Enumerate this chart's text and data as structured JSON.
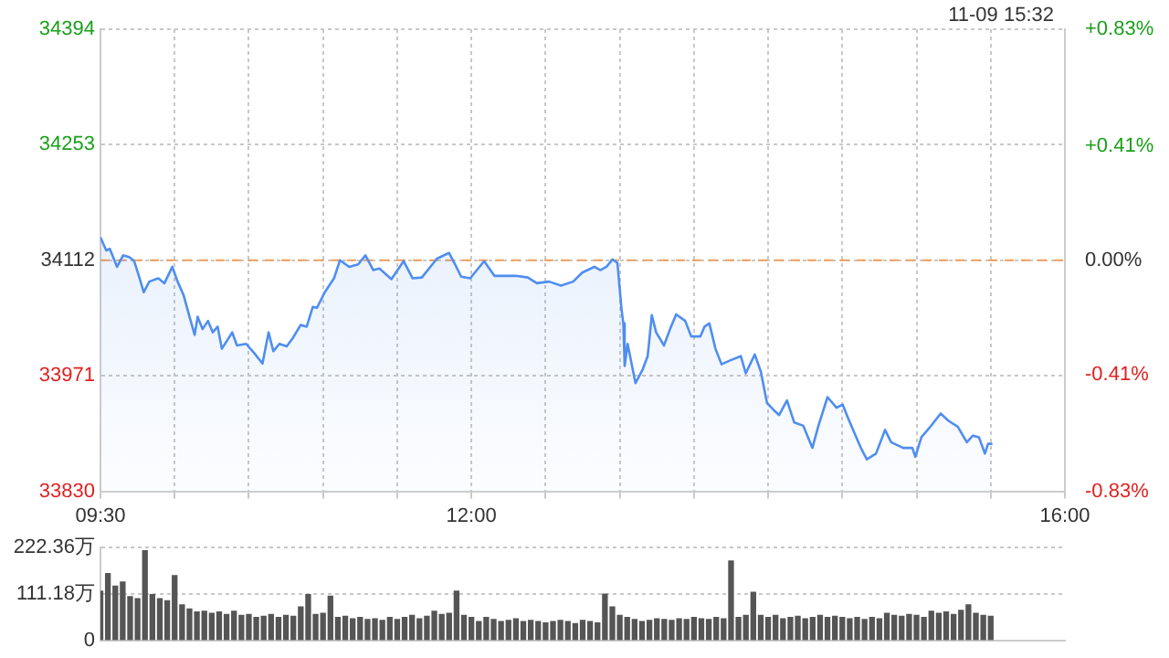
{
  "chart_data": [
    {
      "type": "area",
      "annotations": [
        "11-09 15:32"
      ],
      "series": [
        {
          "color": "#4f8ef0",
          "x": [
            9.5,
            9.539,
            9.563,
            9.612,
            9.653,
            9.694,
            9.727,
            9.759,
            9.792,
            9.829,
            9.89,
            9.931,
            9.984,
            10.02,
            10.061,
            10.102,
            10.135,
            10.155,
            10.188,
            10.225,
            10.257,
            10.29,
            10.318,
            10.388,
            10.42,
            10.482,
            10.535,
            10.592,
            10.633,
            10.665,
            10.706,
            10.755,
            10.796,
            10.849,
            10.89,
            10.931,
            10.959,
            11.012,
            11.074,
            11.114,
            11.176,
            11.237,
            11.286,
            11.339,
            11.38,
            11.461,
            11.543,
            11.604,
            11.666,
            11.768,
            11.849,
            11.89,
            11.931,
            11.992,
            12.086,
            12.155,
            12.298,
            12.38,
            12.441,
            12.523,
            12.604,
            12.686,
            12.747,
            12.829,
            12.869,
            12.91,
            12.951,
            12.984,
            13.012,
            13.024,
            13.033,
            13.053,
            13.106,
            13.155,
            13.188,
            13.216,
            13.245,
            13.298,
            13.339,
            13.38,
            13.441,
            13.482,
            13.543,
            13.571,
            13.604,
            13.645,
            13.686,
            13.747,
            13.816,
            13.849,
            13.91,
            13.951,
            13.992,
            14.033,
            14.074,
            14.127,
            14.176,
            14.237,
            14.298,
            14.339,
            14.4,
            14.461,
            14.502,
            14.535,
            14.584,
            14.625,
            14.665,
            14.727,
            14.788,
            14.829,
            14.91,
            14.972,
            14.992,
            15.033,
            15.094,
            15.163,
            15.216,
            15.278,
            15.339,
            15.38,
            15.421,
            15.461,
            15.482,
            15.511
          ],
          "values": [
            34140,
            34124,
            34126,
            34104,
            34118,
            34116,
            34111,
            34093,
            34073,
            34086,
            34090,
            34084,
            34104,
            34086,
            34069,
            34042,
            34021,
            34043,
            34028,
            34038,
            34024,
            34031,
            34004,
            34024,
            34008,
            34010,
            33999,
            33986,
            34024,
            34001,
            34010,
            34007,
            34017,
            34033,
            34031,
            34055,
            34054,
            34073,
            34090,
            34112,
            34104,
            34107,
            34118,
            34100,
            34102,
            34089,
            34111,
            34090,
            34091,
            34114,
            34121,
            34107,
            34092,
            34090,
            34111,
            34093,
            34093,
            34091,
            34084,
            34086,
            34081,
            34086,
            34097,
            34104,
            34100,
            34104,
            34113,
            34109,
            34052,
            34035,
            33983,
            34010,
            33962,
            33979,
            33995,
            34045,
            34024,
            34008,
            34028,
            34046,
            34038,
            34019,
            34019,
            34031,
            34035,
            34004,
            33985,
            33990,
            33995,
            33974,
            33997,
            33976,
            33938,
            33930,
            33923,
            33941,
            33914,
            33910,
            33883,
            33910,
            33945,
            33932,
            33936,
            33921,
            33900,
            33883,
            33869,
            33876,
            33905,
            33890,
            33883,
            33883,
            33872,
            33896,
            33909,
            33925,
            33916,
            33909,
            33890,
            33898,
            33896,
            33876,
            33888,
            33888
          ]
        }
      ],
      "xlim": [
        9.5,
        16
      ],
      "xticks": [
        {
          "value": 9.5,
          "label": "09:30"
        },
        {
          "value": 10,
          "label": null
        },
        {
          "value": 10.5,
          "label": null
        },
        {
          "value": 11,
          "label": null
        },
        {
          "value": 11.5,
          "label": null
        },
        {
          "value": 12,
          "label": "12:00"
        },
        {
          "value": 12.5,
          "label": null
        },
        {
          "value": 13,
          "label": null
        },
        {
          "value": 13.5,
          "label": null
        },
        {
          "value": 14,
          "label": null
        },
        {
          "value": 14.5,
          "label": null
        },
        {
          "value": 15,
          "label": null
        },
        {
          "value": 15.5,
          "label": null
        },
        {
          "value": 16,
          "label": "16:00"
        }
      ],
      "ylim": [
        33830,
        34394
      ],
      "yticks": [
        33830,
        33971,
        34112,
        34253,
        34394
      ],
      "y2lim": [
        -0.83,
        0.83
      ],
      "y2ticks": [
        {
          "value": -0.83,
          "label": "-0.83%"
        },
        {
          "value": -0.41,
          "label": "-0.41%"
        },
        {
          "value": 0,
          "label": "0.00%"
        },
        {
          "value": 0.41,
          "label": "+0.41%"
        },
        {
          "value": 0.83,
          "label": "+0.83%"
        }
      ],
      "ref_lines": [
        {
          "axis": "y",
          "value": 34112,
          "color": "#f0a060",
          "line_style": "dashed"
        }
      ],
      "grid": true
    },
    {
      "type": "bar",
      "tick_labels": "y",
      "grid": "y",
      "xlim": [
        9.5,
        16
      ],
      "ylim": [
        0,
        222.36
      ],
      "yticks": [
        0,
        {
          "value": 111.18,
          "label": "111.18万"
        },
        {
          "value": 222.36,
          "label": "222.36万"
        }
      ],
      "series": [
        {
          "color": "#555555",
          "x": [
            9.5,
            9.55,
            9.6,
            9.65,
            9.7,
            9.75,
            9.8,
            9.85,
            9.9,
            9.95,
            10.0,
            10.05,
            10.1,
            10.15,
            10.2,
            10.25,
            10.3,
            10.35,
            10.4,
            10.45,
            10.5,
            10.55,
            10.6,
            10.65,
            10.7,
            10.75,
            10.8,
            10.85,
            10.9,
            10.95,
            11.0,
            11.05,
            11.1,
            11.15,
            11.2,
            11.25,
            11.3,
            11.35,
            11.4,
            11.45,
            11.5,
            11.55,
            11.6,
            11.65,
            11.7,
            11.75,
            11.8,
            11.85,
            11.9,
            11.95,
            12.0,
            12.05,
            12.1,
            12.15,
            12.2,
            12.25,
            12.3,
            12.35,
            12.4,
            12.45,
            12.5,
            12.55,
            12.6,
            12.65,
            12.7,
            12.75,
            12.8,
            12.85,
            12.9,
            12.95,
            13.0,
            13.05,
            13.1,
            13.15,
            13.2,
            13.25,
            13.3,
            13.35,
            13.4,
            13.45,
            13.5,
            13.55,
            13.6,
            13.65,
            13.7,
            13.75,
            13.8,
            13.85,
            13.9,
            13.95,
            14.0,
            14.05,
            14.1,
            14.15,
            14.2,
            14.25,
            14.3,
            14.35,
            14.4,
            14.45,
            14.5,
            14.55,
            14.6,
            14.65,
            14.7,
            14.75,
            14.8,
            14.85,
            14.9,
            14.95,
            15.0,
            15.05,
            15.1,
            15.15,
            15.2,
            15.25,
            15.3,
            15.35,
            15.4,
            15.45,
            15.5
          ],
          "values": [
            118,
            160,
            130,
            140,
            105,
            100,
            215,
            110,
            100,
            95,
            155,
            85,
            75,
            68,
            70,
            65,
            68,
            62,
            70,
            60,
            62,
            55,
            58,
            62,
            55,
            60,
            58,
            80,
            110,
            62,
            65,
            106,
            55,
            58,
            52,
            55,
            50,
            52,
            48,
            55,
            50,
            55,
            60,
            52,
            58,
            70,
            62,
            65,
            118,
            60,
            55,
            45,
            55,
            50,
            45,
            48,
            52,
            45,
            48,
            45,
            42,
            45,
            48,
            45,
            40,
            48,
            45,
            42,
            111,
            80,
            60,
            55,
            50,
            45,
            48,
            52,
            50,
            48,
            52,
            50,
            55,
            52,
            50,
            55,
            52,
            190,
            55,
            60,
            115,
            60,
            55,
            60,
            52,
            55,
            58,
            52,
            55,
            60,
            55,
            58,
            55,
            52,
            55,
            50,
            55,
            52,
            65,
            60,
            58,
            62,
            60,
            55,
            70,
            65,
            68,
            62,
            72,
            85,
            65,
            60,
            58
          ]
        }
      ]
    }
  ]
}
